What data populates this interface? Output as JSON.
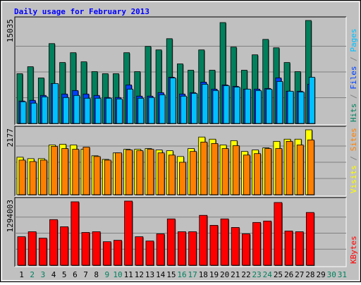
{
  "title": "Daily usage for February 2013",
  "title_color": "#0000ff",
  "categories": [
    "1",
    "2",
    "3",
    "4",
    "5",
    "6",
    "7",
    "8",
    "9",
    "10",
    "11",
    "12",
    "13",
    "14",
    "15",
    "16",
    "17",
    "18",
    "19",
    "20",
    "21",
    "22",
    "23",
    "24",
    "25",
    "26",
    "27",
    "28",
    "29",
    "30",
    "31"
  ],
  "category_color": "#000000",
  "highlight_categories": [
    "2",
    "3",
    "9",
    "10",
    "16",
    "17",
    "23",
    "24",
    "30",
    "31"
  ],
  "highlight_color": "#00805c",
  "legend_separator": " / ",
  "chart_data": [
    {
      "type": "bar",
      "ylim": [
        0,
        15035
      ],
      "yticks": [
        15035
      ],
      "series": [
        {
          "name": "Hits",
          "color": "#00805c",
          "values": [
            7262,
            8285,
            6648,
            11660,
            8898,
            10330,
            9001,
            7569,
            7262,
            7262,
            10330,
            7569,
            11251,
            10739,
            12376,
            8694,
            7773,
            10739,
            7773,
            14728,
            11149,
            7773,
            10023,
            12273,
            11046,
            8898,
            7569,
            15035,
            null,
            null,
            null
          ]
        },
        {
          "name": "Files",
          "color": "#0040ff",
          "values": [
            3273,
            3375,
            4091,
            5830,
            4296,
            4807,
            4296,
            4091,
            3784,
            3784,
            5625,
            3989,
            3989,
            4500,
            6750,
            4296,
            4500,
            6034,
            5012,
            5625,
            5421,
            5012,
            5012,
            5114,
            6648,
            4705,
            4705,
            5728,
            null,
            null,
            null
          ]
        },
        {
          "name": "Pages",
          "color": "#00c0ff",
          "values": [
            3171,
            2966,
            3887,
            5830,
            3784,
            4091,
            3682,
            3682,
            3682,
            3580,
            5012,
            3682,
            3784,
            4193,
            6648,
            3989,
            4398,
            5728,
            4807,
            5523,
            5318,
            5012,
            4807,
            5012,
            6137,
            4705,
            4603,
            6750,
            null,
            null,
            null
          ]
        }
      ]
    },
    {
      "type": "bar",
      "ylim": [
        0,
        2177
      ],
      "yticks": [
        2177
      ],
      "series": [
        {
          "name": "Visits",
          "color": "#ffff00",
          "values": [
            1258,
            1210,
            1210,
            1669,
            1693,
            1669,
            1524,
            1306,
            1185,
            1403,
            1524,
            1524,
            1548,
            1500,
            1476,
            1282,
            1548,
            1935,
            1863,
            1669,
            1814,
            1451,
            1500,
            1572,
            1790,
            1863,
            1863,
            2177,
            null,
            null,
            null
          ]
        },
        {
          "name": "Sites",
          "color": "#ff8000",
          "values": [
            1161,
            1113,
            1161,
            1621,
            1548,
            1524,
            1597,
            1282,
            1161,
            1403,
            1500,
            1476,
            1524,
            1403,
            1330,
            1089,
            1451,
            1766,
            1717,
            1548,
            1645,
            1330,
            1379,
            1548,
            1548,
            1790,
            1669,
            1838,
            null,
            null,
            null
          ]
        }
      ]
    },
    {
      "type": "bar",
      "ylim": [
        0,
        1294003
      ],
      "yticks": [
        1294003
      ],
      "series": [
        {
          "name": "KBytes",
          "color": "#ff0000",
          "values": [
            575120,
            675766,
            546364,
            920192,
            776412,
            1279642,
            661388,
            675766,
            474474,
            503230,
            1294003,
            575120,
            488852,
            632632,
            934570,
            675766,
            675766,
            1006460,
            805168,
            934570,
            762034,
            632632,
            862680,
            891436,
            1265264,
            690144,
            675766,
            1063972,
            null,
            null,
            null
          ]
        }
      ]
    }
  ]
}
